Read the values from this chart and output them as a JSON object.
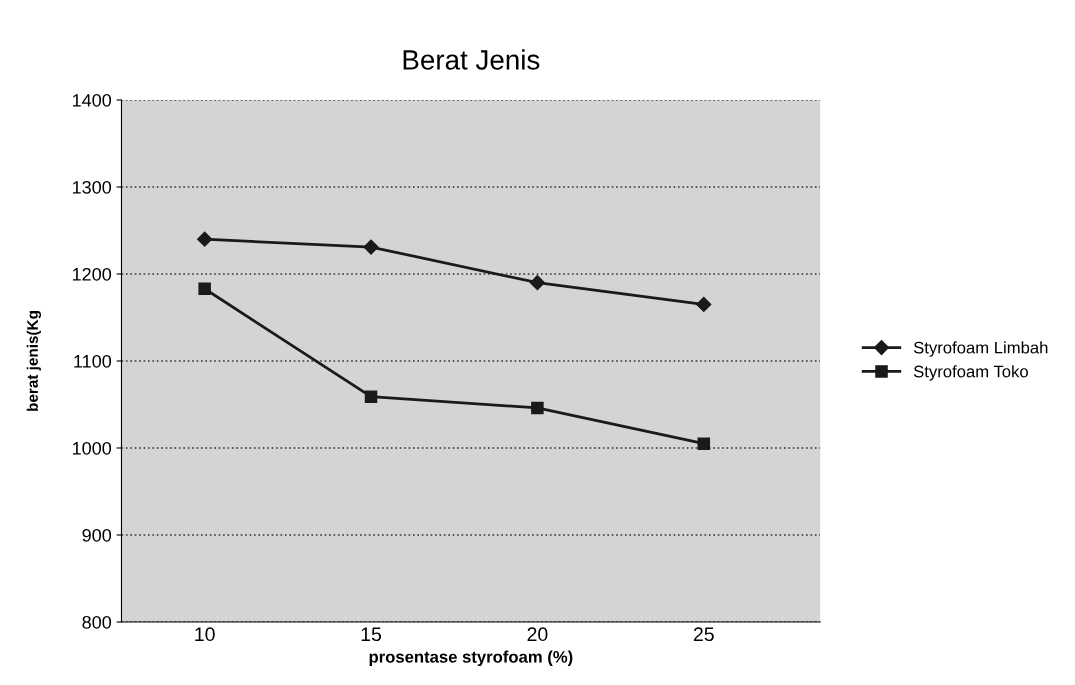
{
  "chart_data": {
    "type": "line",
    "title": "Berat Jenis",
    "xlabel": "prosentase styrofoam (%)",
    "ylabel": "berat jenis(Kg",
    "categories": [
      "10",
      "15",
      "20",
      "25"
    ],
    "series": [
      {
        "name": "Styrofoam Limbah",
        "color": "#1a1a1a",
        "marker": "diamond",
        "values": [
          1240,
          1231,
          1190,
          1165
        ]
      },
      {
        "name": "Styrofoam Toko",
        "color": "#1a1a1a",
        "marker": "square",
        "values": [
          1183,
          1059,
          1046,
          1005
        ]
      }
    ],
    "ylim": [
      800,
      1400
    ],
    "yticks": [
      800,
      900,
      1000,
      1100,
      1200,
      1300,
      1400
    ],
    "grid": "y",
    "legend": "right",
    "line_style": "solid"
  }
}
